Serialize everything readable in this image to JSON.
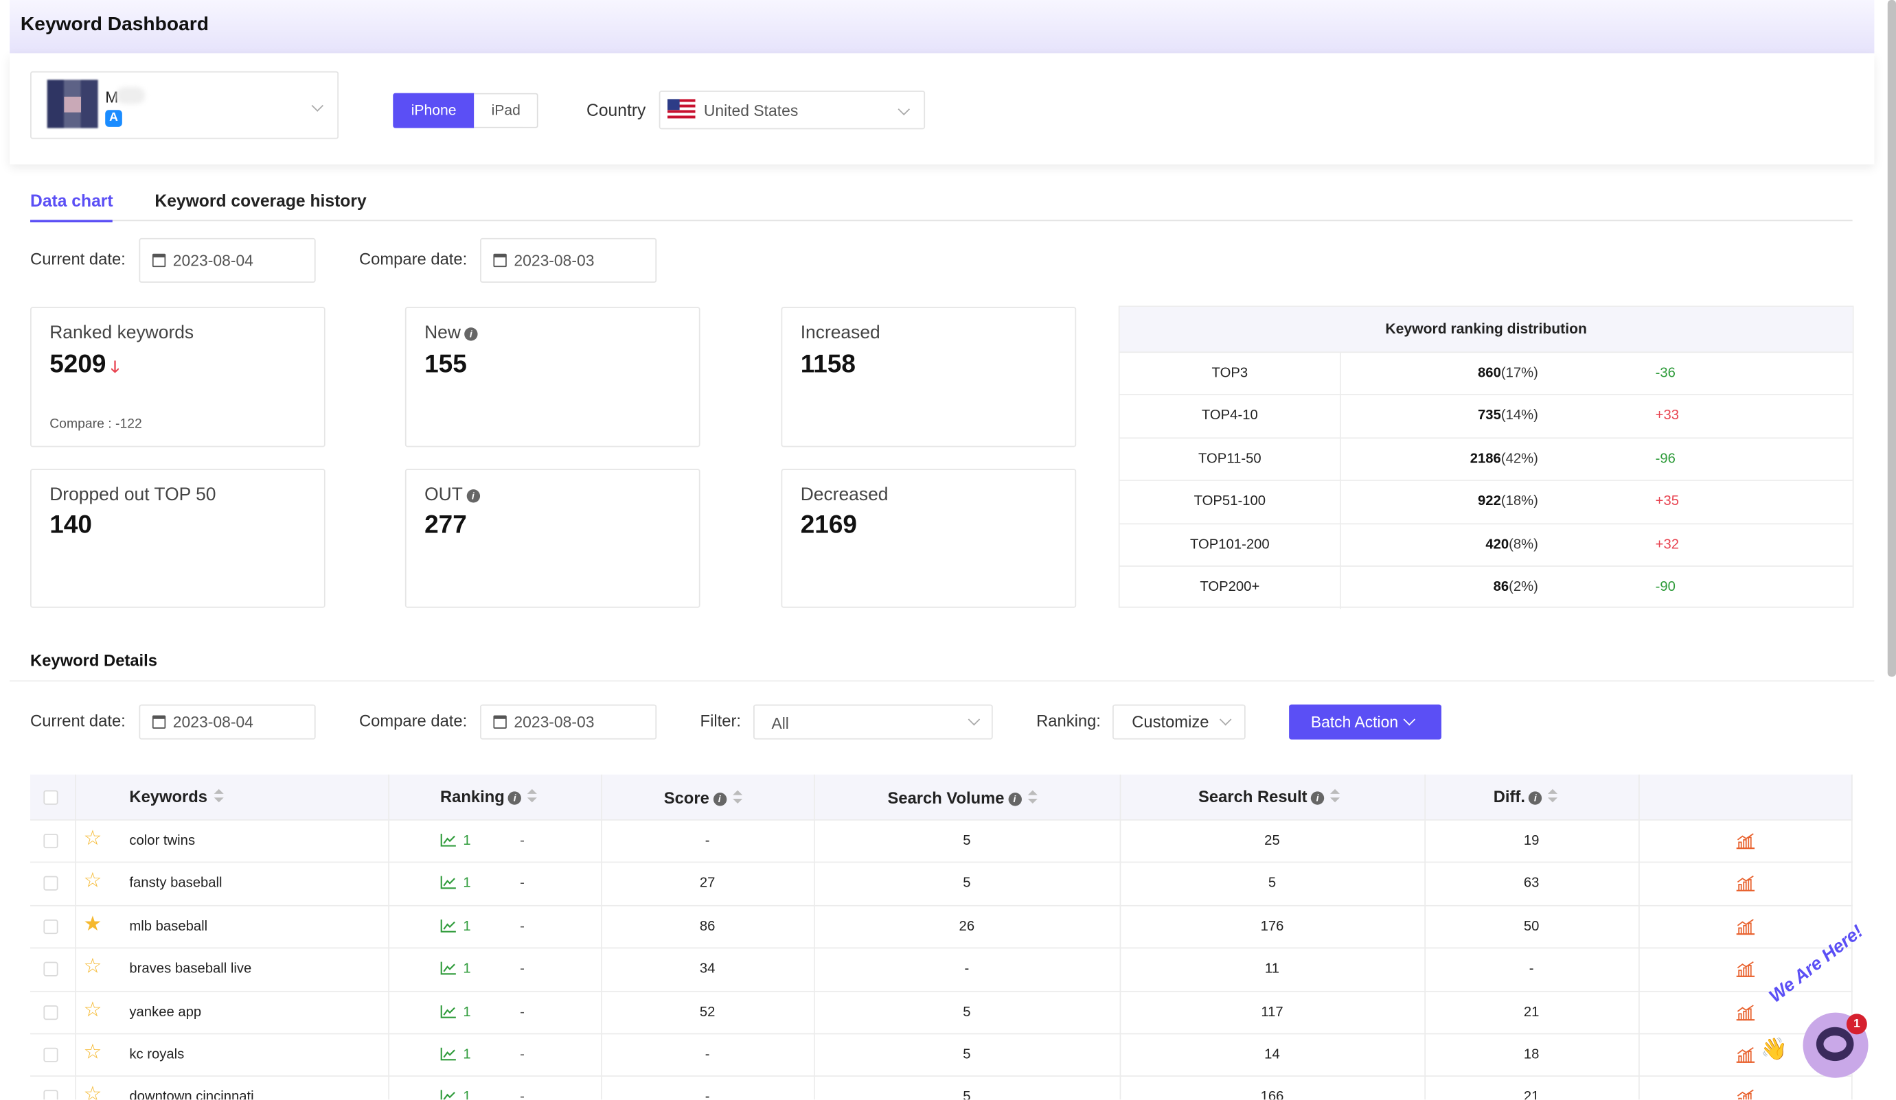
{
  "page": {
    "title": "Keyword Dashboard"
  },
  "app": {
    "name_partial": "M",
    "store_icon": "app-store-icon"
  },
  "device": {
    "options": [
      "iPhone",
      "iPad"
    ],
    "selected": "iPhone"
  },
  "country": {
    "label": "Country",
    "value": "United States",
    "flag": "us-flag-icon"
  },
  "tabs": [
    {
      "label": "Data chart",
      "active": true
    },
    {
      "label": "Keyword coverage history",
      "active": false
    }
  ],
  "dates": {
    "current_label": "Current date:",
    "current": "2023-08-04",
    "compare_label": "Compare date:",
    "compare": "2023-08-03"
  },
  "stats": [
    {
      "title": "Ranked keywords",
      "value": "5209",
      "compare": "Compare : -122",
      "trend": "down"
    },
    {
      "title": "New",
      "value": "155",
      "info": true
    },
    {
      "title": "Increased",
      "value": "1158"
    },
    {
      "title": "Dropped out TOP 50",
      "value": "140"
    },
    {
      "title": "OUT",
      "value": "277",
      "info": true
    },
    {
      "title": "Decreased",
      "value": "2169"
    }
  ],
  "distribution": {
    "title": "Keyword ranking distribution",
    "rows": [
      {
        "range": "TOP3",
        "count": "860",
        "pct": "(17%)",
        "diff": "-36"
      },
      {
        "range": "TOP4-10",
        "count": "735",
        "pct": "(14%)",
        "diff": "+33"
      },
      {
        "range": "TOP11-50",
        "count": "2186",
        "pct": "(42%)",
        "diff": "-96"
      },
      {
        "range": "TOP51-100",
        "count": "922",
        "pct": "(18%)",
        "diff": "+35"
      },
      {
        "range": "TOP101-200",
        "count": "420",
        "pct": "(8%)",
        "diff": "+32"
      },
      {
        "range": "TOP200+",
        "count": "86",
        "pct": "(2%)",
        "diff": "-90"
      }
    ]
  },
  "details": {
    "title": "Keyword Details",
    "current_label": "Current date:",
    "current": "2023-08-04",
    "compare_label": "Compare date:",
    "compare": "2023-08-03",
    "filter_label": "Filter:",
    "filter_value": "All",
    "ranking_label": "Ranking:",
    "ranking_value": "Customize",
    "batch_label": "Batch Action"
  },
  "table": {
    "headers": {
      "keywords": "Keywords",
      "ranking": "Ranking",
      "score": "Score",
      "volume": "Search Volume",
      "result": "Search Result",
      "diff": "Diff."
    },
    "rows": [
      {
        "keyword": "color twins",
        "rank": "1",
        "rank_diff": "-",
        "score": "-",
        "volume": "5",
        "result": "25",
        "diff": "19",
        "starred": false
      },
      {
        "keyword": "fansty baseball",
        "rank": "1",
        "rank_diff": "-",
        "score": "27",
        "volume": "5",
        "result": "5",
        "diff": "63",
        "starred": false
      },
      {
        "keyword": "mlb baseball",
        "rank": "1",
        "rank_diff": "-",
        "score": "86",
        "volume": "26",
        "result": "176",
        "diff": "50",
        "starred": true
      },
      {
        "keyword": "braves baseball live",
        "rank": "1",
        "rank_diff": "-",
        "score": "34",
        "volume": "-",
        "result": "11",
        "diff": "-",
        "starred": false
      },
      {
        "keyword": "yankee app",
        "rank": "1",
        "rank_diff": "-",
        "score": "52",
        "volume": "5",
        "result": "117",
        "diff": "21",
        "starred": false
      },
      {
        "keyword": "kc royals",
        "rank": "1",
        "rank_diff": "-",
        "score": "-",
        "volume": "5",
        "result": "14",
        "diff": "18",
        "starred": false
      },
      {
        "keyword": "downtown cincinnati",
        "rank": "1",
        "rank_diff": "-",
        "score": "-",
        "volume": "5",
        "result": "166",
        "diff": "21",
        "starred": false
      }
    ]
  },
  "chat": {
    "badge": "1",
    "tagline": "We Are Here!"
  },
  "colors": {
    "accent": "#5b4ff5",
    "up": "#2e9b3a",
    "down": "#e84350",
    "star": "#f5b82e"
  }
}
